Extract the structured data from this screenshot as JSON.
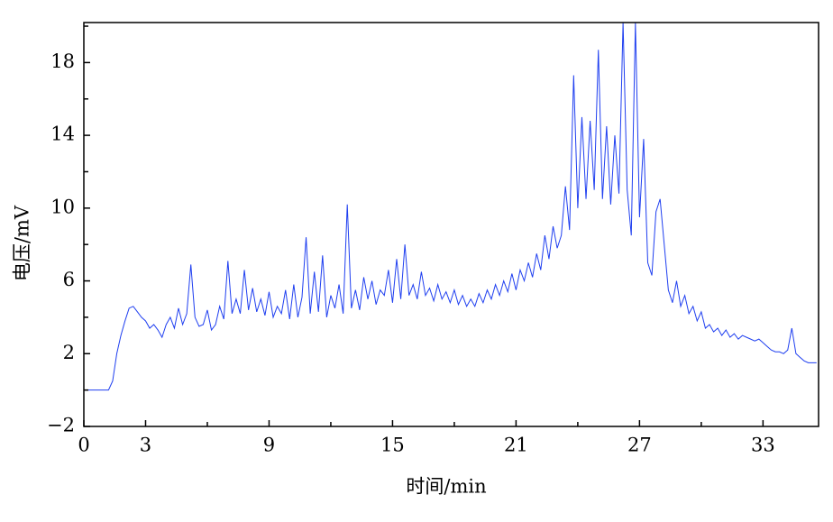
{
  "chart_data": {
    "type": "line",
    "xlabel": "时间/min",
    "ylabel": "电压/mV",
    "x": [
      0,
      0.2,
      0.4,
      0.6,
      0.8,
      1.0,
      1.2,
      1.4,
      1.6,
      1.8,
      2.0,
      2.2,
      2.4,
      2.6,
      2.8,
      3.0,
      3.2,
      3.4,
      3.6,
      3.8,
      4.0,
      4.2,
      4.4,
      4.6,
      4.8,
      5.0,
      5.2,
      5.4,
      5.6,
      5.8,
      6.0,
      6.2,
      6.4,
      6.6,
      6.8,
      7.0,
      7.2,
      7.4,
      7.6,
      7.8,
      8.0,
      8.2,
      8.4,
      8.6,
      8.8,
      9.0,
      9.2,
      9.4,
      9.6,
      9.8,
      10.0,
      10.2,
      10.4,
      10.6,
      10.8,
      11.0,
      11.2,
      11.4,
      11.6,
      11.8,
      12.0,
      12.2,
      12.4,
      12.6,
      12.8,
      13.0,
      13.2,
      13.4,
      13.6,
      13.8,
      14.0,
      14.2,
      14.4,
      14.6,
      14.8,
      15.0,
      15.2,
      15.4,
      15.6,
      15.8,
      16.0,
      16.2,
      16.4,
      16.6,
      16.8,
      17.0,
      17.2,
      17.4,
      17.6,
      17.8,
      18.0,
      18.2,
      18.4,
      18.6,
      18.8,
      19.0,
      19.2,
      19.4,
      19.6,
      19.8,
      20.0,
      20.2,
      20.4,
      20.6,
      20.8,
      21.0,
      21.2,
      21.4,
      21.6,
      21.8,
      22.0,
      22.2,
      22.4,
      22.6,
      22.8,
      23.0,
      23.2,
      23.4,
      23.6,
      23.8,
      24.0,
      24.2,
      24.4,
      24.6,
      24.8,
      25.0,
      25.2,
      25.4,
      25.6,
      25.8,
      26.0,
      26.2,
      26.4,
      26.6,
      26.8,
      27.0,
      27.2,
      27.4,
      27.6,
      27.8,
      28.0,
      28.2,
      28.4,
      28.6,
      28.8,
      29.0,
      29.2,
      29.4,
      29.6,
      29.8,
      30.0,
      30.2,
      30.4,
      30.6,
      30.8,
      31.0,
      31.2,
      31.4,
      31.6,
      31.8,
      32.0,
      32.2,
      32.4,
      32.6,
      32.8,
      33.0,
      33.2,
      33.4,
      33.6,
      33.8,
      34.0,
      34.2,
      34.4,
      34.6,
      34.8,
      35.0,
      35.2,
      35.4,
      35.6
    ],
    "series": [
      {
        "color": "#1f3ff0",
        "values": [
          0,
          0,
          0,
          0,
          0,
          0,
          0,
          0.5,
          2.0,
          3.0,
          3.8,
          4.5,
          4.6,
          4.3,
          4.0,
          3.8,
          3.4,
          3.6,
          3.3,
          2.9,
          3.6,
          4.0,
          3.4,
          4.5,
          3.6,
          4.2,
          6.9,
          4.0,
          3.5,
          3.6,
          4.4,
          3.3,
          3.6,
          4.6,
          3.9,
          7.1,
          4.2,
          5.0,
          4.2,
          6.6,
          4.4,
          5.6,
          4.3,
          5.0,
          4.1,
          5.4,
          4.0,
          4.6,
          4.2,
          5.5,
          3.9,
          5.8,
          4.0,
          5.1,
          8.4,
          4.2,
          6.5,
          4.3,
          7.4,
          4.0,
          5.2,
          4.5,
          5.8,
          4.2,
          10.2,
          4.5,
          5.5,
          4.4,
          6.2,
          5.0,
          6.0,
          4.7,
          5.5,
          5.2,
          6.6,
          4.8,
          7.2,
          5.0,
          8.0,
          5.2,
          5.8,
          5.0,
          6.5,
          5.2,
          5.6,
          4.9,
          5.8,
          5.0,
          5.4,
          4.8,
          5.5,
          4.7,
          5.2,
          4.6,
          5.0,
          4.6,
          5.3,
          4.8,
          5.5,
          5.0,
          5.8,
          5.2,
          6.0,
          5.4,
          6.4,
          5.5,
          6.6,
          6.0,
          7.0,
          6.2,
          7.5,
          6.6,
          8.5,
          7.2,
          9.0,
          7.8,
          8.5,
          11.2,
          8.8,
          17.3,
          10.0,
          15.0,
          10.5,
          14.8,
          11.0,
          18.7,
          10.5,
          14.5,
          10.2,
          14.0,
          10.8,
          20.2,
          11.0,
          8.5,
          20.2,
          9.5,
          13.8,
          7.0,
          6.3,
          9.8,
          10.5,
          8.0,
          5.5,
          4.8,
          6.0,
          4.6,
          5.2,
          4.2,
          4.6,
          3.8,
          4.3,
          3.4,
          3.6,
          3.2,
          3.4,
          3.0,
          3.3,
          2.9,
          3.1,
          2.8,
          3.0,
          2.9,
          2.8,
          2.7,
          2.8,
          2.6,
          2.4,
          2.2,
          2.1,
          2.1,
          2.0,
          2.2,
          3.4,
          2.0,
          1.8,
          1.6,
          1.5,
          1.5,
          1.5
        ]
      }
    ],
    "xlim": [
      0,
      35.7
    ],
    "xticks": [
      0,
      3,
      9,
      15,
      21,
      27,
      33
    ],
    "xticks_minor": [
      6,
      12,
      18,
      24,
      30
    ],
    "ylim": [
      -2,
      20.2
    ],
    "yticks": [
      {
        "value": -2,
        "label": "−2"
      },
      2,
      6,
      10,
      14,
      18
    ],
    "yticks_minor": [
      0,
      4,
      8,
      12,
      16,
      20
    ],
    "grid": false
  }
}
